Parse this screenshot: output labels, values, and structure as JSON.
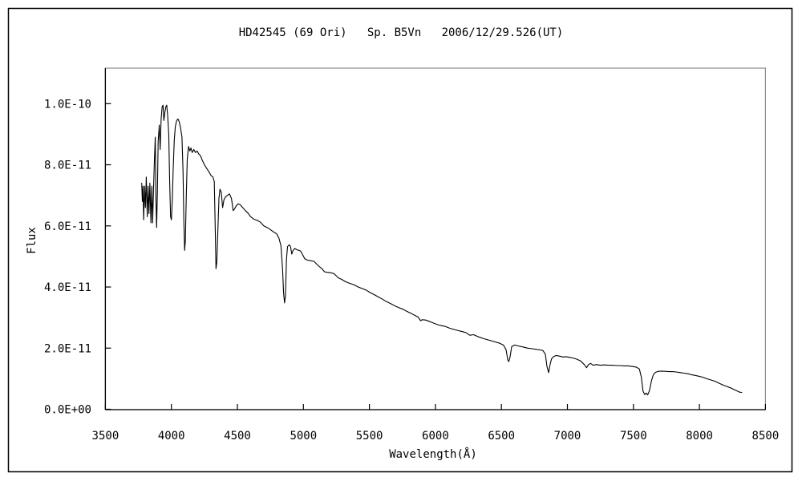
{
  "page": {
    "background_color": "#ffffff",
    "outer_border_color": "#000000"
  },
  "chart_data": {
    "type": "line",
    "title": "HD42545 (69 Ori)   Sp. B5Vn   2006/12/29.526(UT)",
    "xlabel": "Wavelength(Å)",
    "ylabel": "Flux",
    "xlim": [
      3500,
      8500
    ],
    "ylim": [
      0,
      1e-10
    ],
    "x_ticks": [
      3500,
      4000,
      4500,
      5000,
      5500,
      6000,
      6500,
      7000,
      7500,
      8000,
      8500
    ],
    "y_ticks": [
      {
        "value_e11": 0,
        "label": "0.0E+00"
      },
      {
        "value_e11": 2,
        "label": "2.0E-11"
      },
      {
        "value_e11": 4,
        "label": "4.0E-11"
      },
      {
        "value_e11": 6,
        "label": "6.0E-11"
      },
      {
        "value_e11": 8,
        "label": "8.0E-11"
      },
      {
        "value_e11": 10,
        "label": "1.0E-10"
      }
    ],
    "grid": false,
    "legend": false,
    "line_color": "#000000",
    "frame_color": "#8c8c8c",
    "axis_color": "#000000",
    "flux_point_unit": 1e-11,
    "series": [
      {
        "name": "spectrum",
        "points_wavelength_flux_e11": [
          [
            3775,
            7.4
          ],
          [
            3780,
            6.8
          ],
          [
            3785,
            7.3
          ],
          [
            3790,
            6.2
          ],
          [
            3797,
            7.3
          ],
          [
            3803,
            6.6
          ],
          [
            3810,
            7.6
          ],
          [
            3817,
            6.3
          ],
          [
            3824,
            7.3
          ],
          [
            3830,
            6.4
          ],
          [
            3837,
            7.4
          ],
          [
            3845,
            6.1
          ],
          [
            3852,
            7.3
          ],
          [
            3858,
            6.1
          ],
          [
            3866,
            7.35
          ],
          [
            3872,
            8.2
          ],
          [
            3878,
            8.9
          ],
          [
            3883,
            6.9
          ],
          [
            3888,
            5.95
          ],
          [
            3894,
            7.2
          ],
          [
            3900,
            8.76
          ],
          [
            3908,
            9.3
          ],
          [
            3915,
            8.5
          ],
          [
            3922,
            9.5
          ],
          [
            3930,
            9.9
          ],
          [
            3937,
            9.95
          ],
          [
            3943,
            9.45
          ],
          [
            3950,
            9.7
          ],
          [
            3958,
            9.9
          ],
          [
            3965,
            9.95
          ],
          [
            3972,
            9.6
          ],
          [
            3980,
            9.0
          ],
          [
            3987,
            7.4
          ],
          [
            3994,
            6.3
          ],
          [
            4000,
            6.2
          ],
          [
            4007,
            6.9
          ],
          [
            4014,
            7.9
          ],
          [
            4022,
            8.8
          ],
          [
            4030,
            9.25
          ],
          [
            4040,
            9.45
          ],
          [
            4050,
            9.5
          ],
          [
            4060,
            9.4
          ],
          [
            4070,
            9.2
          ],
          [
            4080,
            8.9
          ],
          [
            4088,
            7.8
          ],
          [
            4094,
            6.2
          ],
          [
            4100,
            5.2
          ],
          [
            4106,
            5.5
          ],
          [
            4113,
            7.0
          ],
          [
            4120,
            8.2
          ],
          [
            4130,
            8.6
          ],
          [
            4140,
            8.45
          ],
          [
            4148,
            8.55
          ],
          [
            4158,
            8.4
          ],
          [
            4170,
            8.5
          ],
          [
            4182,
            8.4
          ],
          [
            4195,
            8.45
          ],
          [
            4208,
            8.35
          ],
          [
            4220,
            8.3
          ],
          [
            4234,
            8.15
          ],
          [
            4250,
            8.0
          ],
          [
            4265,
            7.9
          ],
          [
            4280,
            7.8
          ],
          [
            4300,
            7.65
          ],
          [
            4315,
            7.6
          ],
          [
            4325,
            7.45
          ],
          [
            4332,
            6.0
          ],
          [
            4338,
            4.6
          ],
          [
            4344,
            4.8
          ],
          [
            4352,
            5.8
          ],
          [
            4360,
            6.9
          ],
          [
            4368,
            7.2
          ],
          [
            4378,
            7.1
          ],
          [
            4388,
            6.6
          ],
          [
            4398,
            6.85
          ],
          [
            4410,
            6.95
          ],
          [
            4425,
            7.0
          ],
          [
            4440,
            7.05
          ],
          [
            4455,
            6.9
          ],
          [
            4468,
            6.5
          ],
          [
            4478,
            6.55
          ],
          [
            4490,
            6.65
          ],
          [
            4505,
            6.72
          ],
          [
            4520,
            6.7
          ],
          [
            4540,
            6.6
          ],
          [
            4560,
            6.5
          ],
          [
            4580,
            6.42
          ],
          [
            4600,
            6.3
          ],
          [
            4625,
            6.22
          ],
          [
            4650,
            6.18
          ],
          [
            4675,
            6.12
          ],
          [
            4700,
            6.0
          ],
          [
            4725,
            5.95
          ],
          [
            4750,
            5.88
          ],
          [
            4775,
            5.8
          ],
          [
            4797,
            5.74
          ],
          [
            4815,
            5.6
          ],
          [
            4830,
            5.35
          ],
          [
            4842,
            4.6
          ],
          [
            4850,
            3.8
          ],
          [
            4857,
            3.48
          ],
          [
            4864,
            3.7
          ],
          [
            4872,
            4.9
          ],
          [
            4880,
            5.32
          ],
          [
            4892,
            5.38
          ],
          [
            4902,
            5.33
          ],
          [
            4912,
            5.08
          ],
          [
            4922,
            5.2
          ],
          [
            4935,
            5.26
          ],
          [
            4950,
            5.22
          ],
          [
            4965,
            5.2
          ],
          [
            4980,
            5.17
          ],
          [
            4995,
            5.05
          ],
          [
            5010,
            4.93
          ],
          [
            5030,
            4.88
          ],
          [
            5055,
            4.86
          ],
          [
            5080,
            4.84
          ],
          [
            5100,
            4.75
          ],
          [
            5120,
            4.67
          ],
          [
            5140,
            4.6
          ],
          [
            5160,
            4.5
          ],
          [
            5180,
            4.48
          ],
          [
            5205,
            4.47
          ],
          [
            5230,
            4.44
          ],
          [
            5248,
            4.37
          ],
          [
            5265,
            4.3
          ],
          [
            5290,
            4.25
          ],
          [
            5320,
            4.17
          ],
          [
            5350,
            4.12
          ],
          [
            5385,
            4.07
          ],
          [
            5415,
            4.0
          ],
          [
            5445,
            3.95
          ],
          [
            5475,
            3.9
          ],
          [
            5505,
            3.82
          ],
          [
            5540,
            3.74
          ],
          [
            5570,
            3.67
          ],
          [
            5600,
            3.6
          ],
          [
            5630,
            3.52
          ],
          [
            5660,
            3.46
          ],
          [
            5695,
            3.38
          ],
          [
            5725,
            3.32
          ],
          [
            5755,
            3.27
          ],
          [
            5785,
            3.2
          ],
          [
            5815,
            3.14
          ],
          [
            5845,
            3.07
          ],
          [
            5868,
            3.02
          ],
          [
            5888,
            2.9
          ],
          [
            5900,
            2.93
          ],
          [
            5925,
            2.92
          ],
          [
            5950,
            2.88
          ],
          [
            5980,
            2.83
          ],
          [
            6010,
            2.78
          ],
          [
            6040,
            2.74
          ],
          [
            6075,
            2.71
          ],
          [
            6110,
            2.65
          ],
          [
            6150,
            2.6
          ],
          [
            6195,
            2.55
          ],
          [
            6230,
            2.51
          ],
          [
            6260,
            2.42
          ],
          [
            6290,
            2.44
          ],
          [
            6320,
            2.38
          ],
          [
            6360,
            2.32
          ],
          [
            6400,
            2.27
          ],
          [
            6440,
            2.22
          ],
          [
            6487,
            2.16
          ],
          [
            6515,
            2.1
          ],
          [
            6535,
            1.95
          ],
          [
            6548,
            1.62
          ],
          [
            6556,
            1.56
          ],
          [
            6565,
            1.7
          ],
          [
            6578,
            2.05
          ],
          [
            6600,
            2.1
          ],
          [
            6630,
            2.07
          ],
          [
            6660,
            2.04
          ],
          [
            6700,
            2.0
          ],
          [
            6735,
            1.98
          ],
          [
            6765,
            1.96
          ],
          [
            6795,
            1.94
          ],
          [
            6815,
            1.92
          ],
          [
            6833,
            1.8
          ],
          [
            6845,
            1.4
          ],
          [
            6858,
            1.2
          ],
          [
            6868,
            1.45
          ],
          [
            6880,
            1.65
          ],
          [
            6895,
            1.72
          ],
          [
            6915,
            1.76
          ],
          [
            6940,
            1.74
          ],
          [
            6965,
            1.71
          ],
          [
            6990,
            1.72
          ],
          [
            7015,
            1.7
          ],
          [
            7040,
            1.68
          ],
          [
            7070,
            1.64
          ],
          [
            7100,
            1.58
          ],
          [
            7128,
            1.46
          ],
          [
            7145,
            1.36
          ],
          [
            7160,
            1.46
          ],
          [
            7175,
            1.5
          ],
          [
            7195,
            1.44
          ],
          [
            7220,
            1.46
          ],
          [
            7250,
            1.44
          ],
          [
            7280,
            1.45
          ],
          [
            7310,
            1.44
          ],
          [
            7340,
            1.44
          ],
          [
            7370,
            1.43
          ],
          [
            7400,
            1.43
          ],
          [
            7430,
            1.42
          ],
          [
            7460,
            1.42
          ],
          [
            7490,
            1.4
          ],
          [
            7520,
            1.38
          ],
          [
            7545,
            1.32
          ],
          [
            7560,
            1.05
          ],
          [
            7572,
            0.6
          ],
          [
            7585,
            0.48
          ],
          [
            7597,
            0.53
          ],
          [
            7608,
            0.47
          ],
          [
            7622,
            0.62
          ],
          [
            7638,
            0.95
          ],
          [
            7652,
            1.14
          ],
          [
            7668,
            1.21
          ],
          [
            7690,
            1.24
          ],
          [
            7715,
            1.25
          ],
          [
            7740,
            1.24
          ],
          [
            7770,
            1.23
          ],
          [
            7800,
            1.23
          ],
          [
            7824,
            1.22
          ],
          [
            7855,
            1.2
          ],
          [
            7885,
            1.18
          ],
          [
            7915,
            1.16
          ],
          [
            7940,
            1.13
          ],
          [
            7965,
            1.11
          ],
          [
            7995,
            1.08
          ],
          [
            8025,
            1.05
          ],
          [
            8055,
            1.0
          ],
          [
            8085,
            0.96
          ],
          [
            8115,
            0.92
          ],
          [
            8145,
            0.86
          ],
          [
            8175,
            0.8
          ],
          [
            8205,
            0.75
          ],
          [
            8235,
            0.7
          ],
          [
            8260,
            0.65
          ],
          [
            8285,
            0.6
          ],
          [
            8305,
            0.56
          ],
          [
            8320,
            0.55
          ]
        ]
      }
    ]
  }
}
